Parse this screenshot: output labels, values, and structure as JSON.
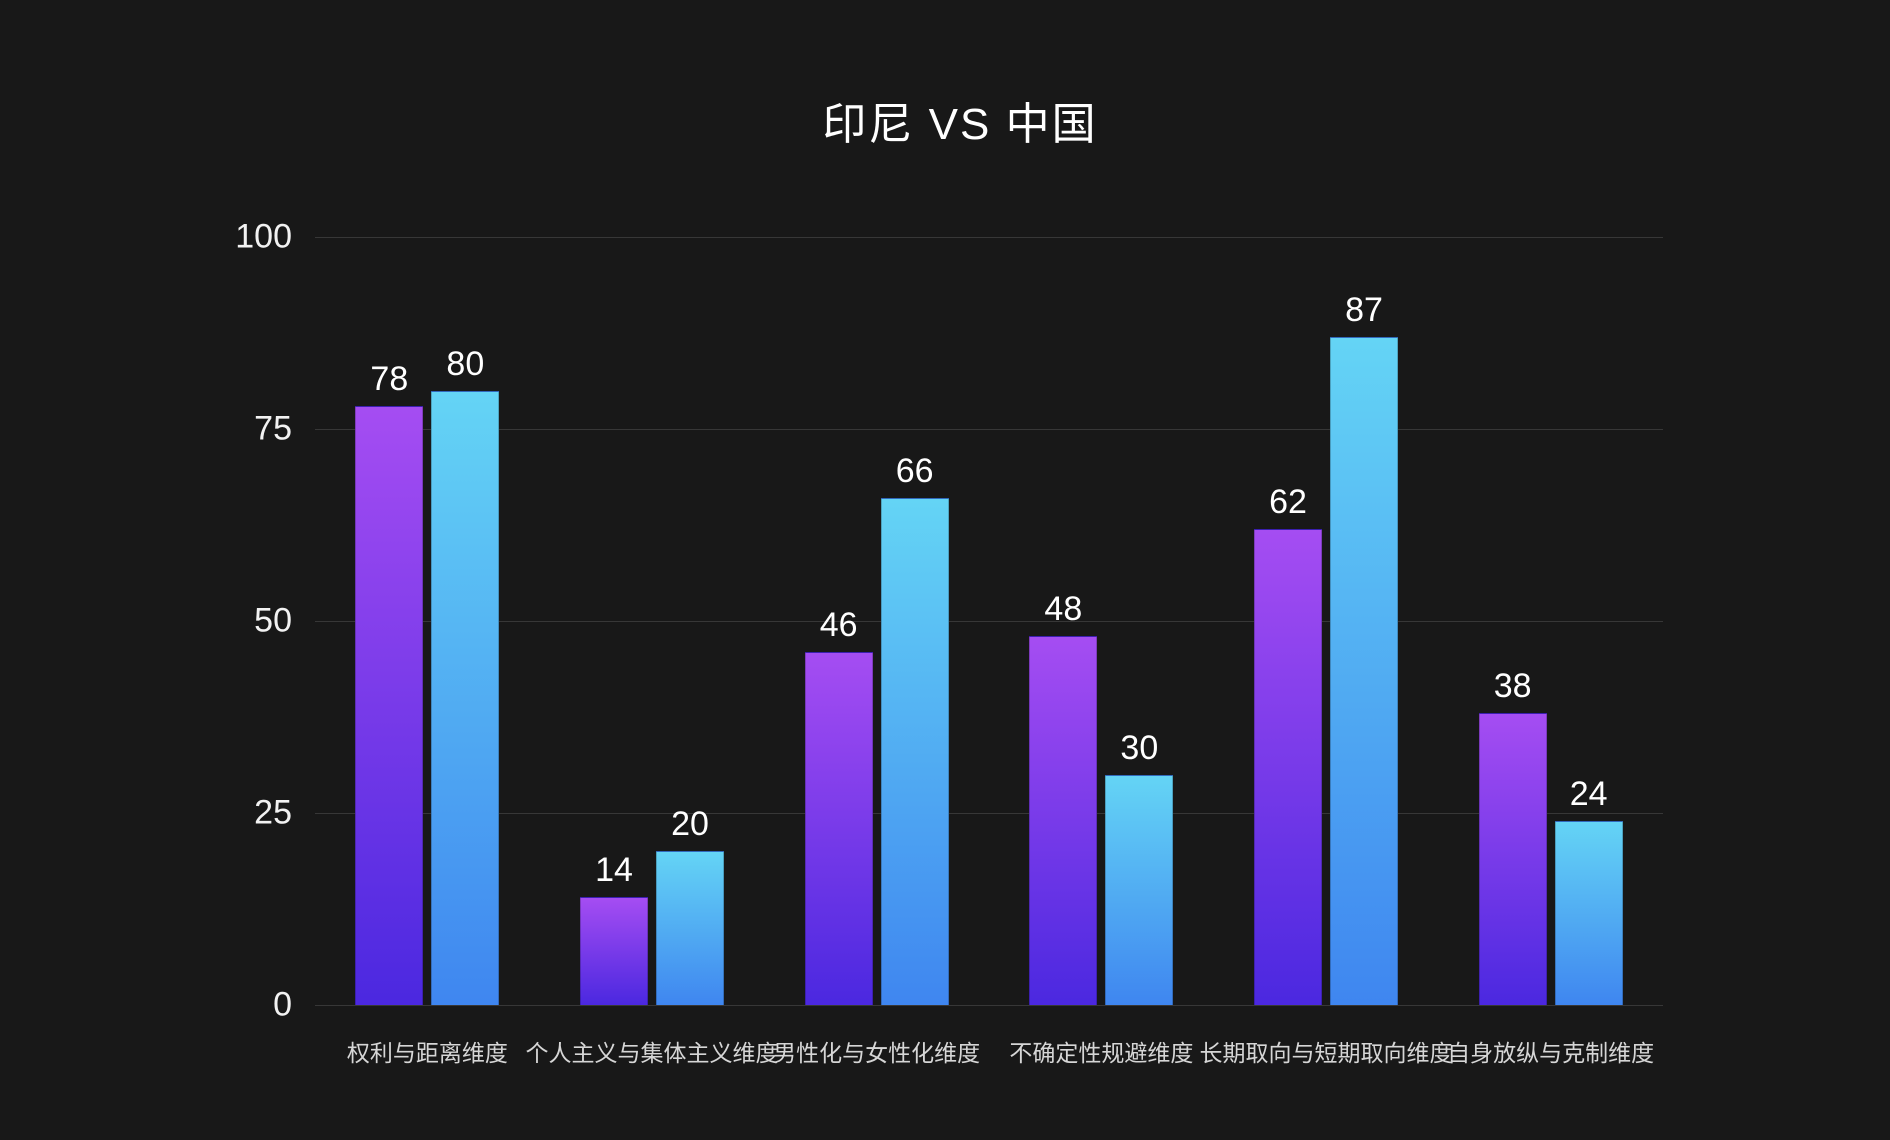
{
  "title": "印尼 VS 中国",
  "chart_data": {
    "type": "bar",
    "title": "印尼 VS 中国",
    "categories": [
      "权利与距离维度",
      "个人主义与集体主义维度",
      "男性化与女性化维度",
      "不确定性规避维度",
      "长期取向与短期取向维度",
      "自身放纵与克制维度"
    ],
    "series": [
      {
        "name": "印尼",
        "values": [
          78,
          14,
          46,
          48,
          62,
          38
        ]
      },
      {
        "name": "中国",
        "values": [
          80,
          20,
          66,
          30,
          87,
          24
        ]
      }
    ],
    "ylim": [
      0,
      100
    ],
    "yticks": [
      0,
      25,
      50,
      75,
      100
    ],
    "grid": true,
    "legend_position": "none",
    "xlabel": "",
    "ylabel": ""
  },
  "colors": {
    "background": "#181818",
    "gridline": "#373737",
    "title_text": "#ffffff",
    "axis_tick_text": "#f2f2f2",
    "value_label_text": "#ffffff",
    "category_label_text": "#d6d6d6",
    "series1_gradient_top": "#a54df2",
    "series1_gradient_bottom": "#4b28e0",
    "series2_gradient_top": "#64d4f5",
    "series2_gradient_bottom": "#3f86f0"
  }
}
